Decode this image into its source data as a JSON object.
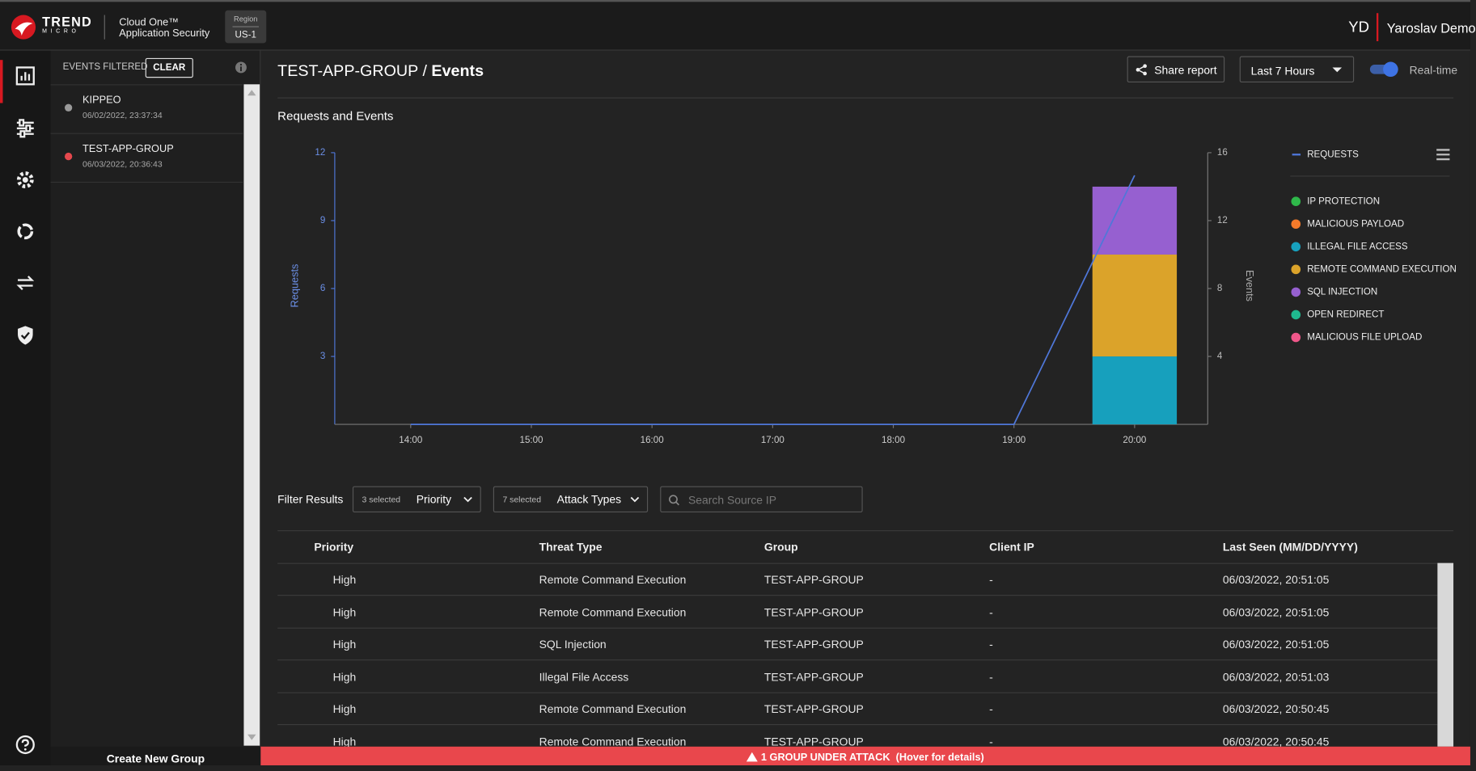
{
  "header": {
    "brand": "TREND",
    "brand_sub": "MICRO",
    "product": "Cloud One™",
    "product_sub": "Application Security",
    "region_label": "Region",
    "region": "US-1",
    "user_initials": "YD",
    "user_name": "Yaroslav Demo"
  },
  "sidebar": {
    "filter_label": "EVENTS FILTERED",
    "clear": "CLEAR",
    "groups": [
      {
        "name": "KIPPEO",
        "date": "06/02/2022, 23:37:34",
        "color": "#9a9a9a"
      },
      {
        "name": "TEST-APP-GROUP",
        "date": "06/03/2022, 20:36:43",
        "color": "#e5484d"
      }
    ],
    "create": "Create New Group"
  },
  "page": {
    "group": "TEST-APP-GROUP",
    "separator": "/",
    "section": "Events",
    "share": "Share report",
    "range": "Last 7 Hours",
    "realtime": "Real-time",
    "panel_title": "Requests and Events"
  },
  "chart_data": {
    "type": "stacked-bar",
    "categories": [
      "14:00",
      "15:00",
      "16:00",
      "17:00",
      "18:00",
      "19:00",
      "20:00"
    ],
    "y_label": "Requests",
    "y2_label": "Events",
    "ylim": [
      0,
      12
    ],
    "yticks": [
      3,
      6,
      9,
      12
    ],
    "y2lim": [
      0,
      16
    ],
    "y2ticks": [
      4,
      8,
      12,
      16
    ],
    "legend": "right",
    "series": [
      {
        "name": "REQUESTS",
        "type": "line",
        "axis": "y",
        "color": "#4f77d9",
        "values": [
          0,
          0,
          0,
          0,
          0,
          0,
          11
        ]
      },
      {
        "name": "IP PROTECTION",
        "axis": "y2",
        "color": "#2fb84a",
        "values": [
          0,
          0,
          0,
          0,
          0,
          0,
          0
        ]
      },
      {
        "name": "MALICIOUS PAYLOAD",
        "axis": "y2",
        "color": "#f47a2a",
        "values": [
          0,
          0,
          0,
          0,
          0,
          0,
          0
        ]
      },
      {
        "name": "ILLEGAL FILE ACCESS",
        "axis": "y2",
        "color": "#17a0bd",
        "values": [
          0,
          0,
          0,
          0,
          0,
          0,
          4
        ]
      },
      {
        "name": "REMOTE COMMAND EXECUTION",
        "axis": "y2",
        "color": "#dba32a",
        "values": [
          0,
          0,
          0,
          0,
          0,
          0,
          6
        ]
      },
      {
        "name": "SQL INJECTION",
        "axis": "y2",
        "color": "#9660d0",
        "values": [
          0,
          0,
          0,
          0,
          0,
          0,
          4
        ]
      },
      {
        "name": "OPEN REDIRECT",
        "axis": "y2",
        "color": "#1fb98f",
        "values": [
          0,
          0,
          0,
          0,
          0,
          0,
          0
        ]
      },
      {
        "name": "MALICIOUS FILE UPLOAD",
        "axis": "y2",
        "color": "#f0578a",
        "values": [
          0,
          0,
          0,
          0,
          0,
          0,
          0
        ]
      }
    ]
  },
  "filters": {
    "label": "Filter Results",
    "priority_count": "3 selected",
    "priority": "Priority",
    "attack_count": "7 selected",
    "attack": "Attack Types",
    "search_placeholder": "Search Source IP"
  },
  "table": {
    "columns": [
      "Priority",
      "Threat Type",
      "Group",
      "Client IP",
      "Last Seen (MM/DD/YYYY)"
    ],
    "rows": [
      [
        "High",
        "Remote Command Execution",
        "TEST-APP-GROUP",
        "-",
        "06/03/2022, 20:51:05"
      ],
      [
        "High",
        "Remote Command Execution",
        "TEST-APP-GROUP",
        "-",
        "06/03/2022, 20:51:05"
      ],
      [
        "High",
        "SQL Injection",
        "TEST-APP-GROUP",
        "-",
        "06/03/2022, 20:51:05"
      ],
      [
        "High",
        "Illegal File Access",
        "TEST-APP-GROUP",
        "-",
        "06/03/2022, 20:51:03"
      ],
      [
        "High",
        "Remote Command Execution",
        "TEST-APP-GROUP",
        "-",
        "06/03/2022, 20:50:45"
      ],
      [
        "High",
        "Remote Command Execution",
        "TEST-APP-GROUP",
        "-",
        "06/03/2022, 20:50:45"
      ]
    ]
  },
  "banner": {
    "text": "1 GROUP UNDER ATTACK",
    "hint": "(Hover for details)"
  }
}
